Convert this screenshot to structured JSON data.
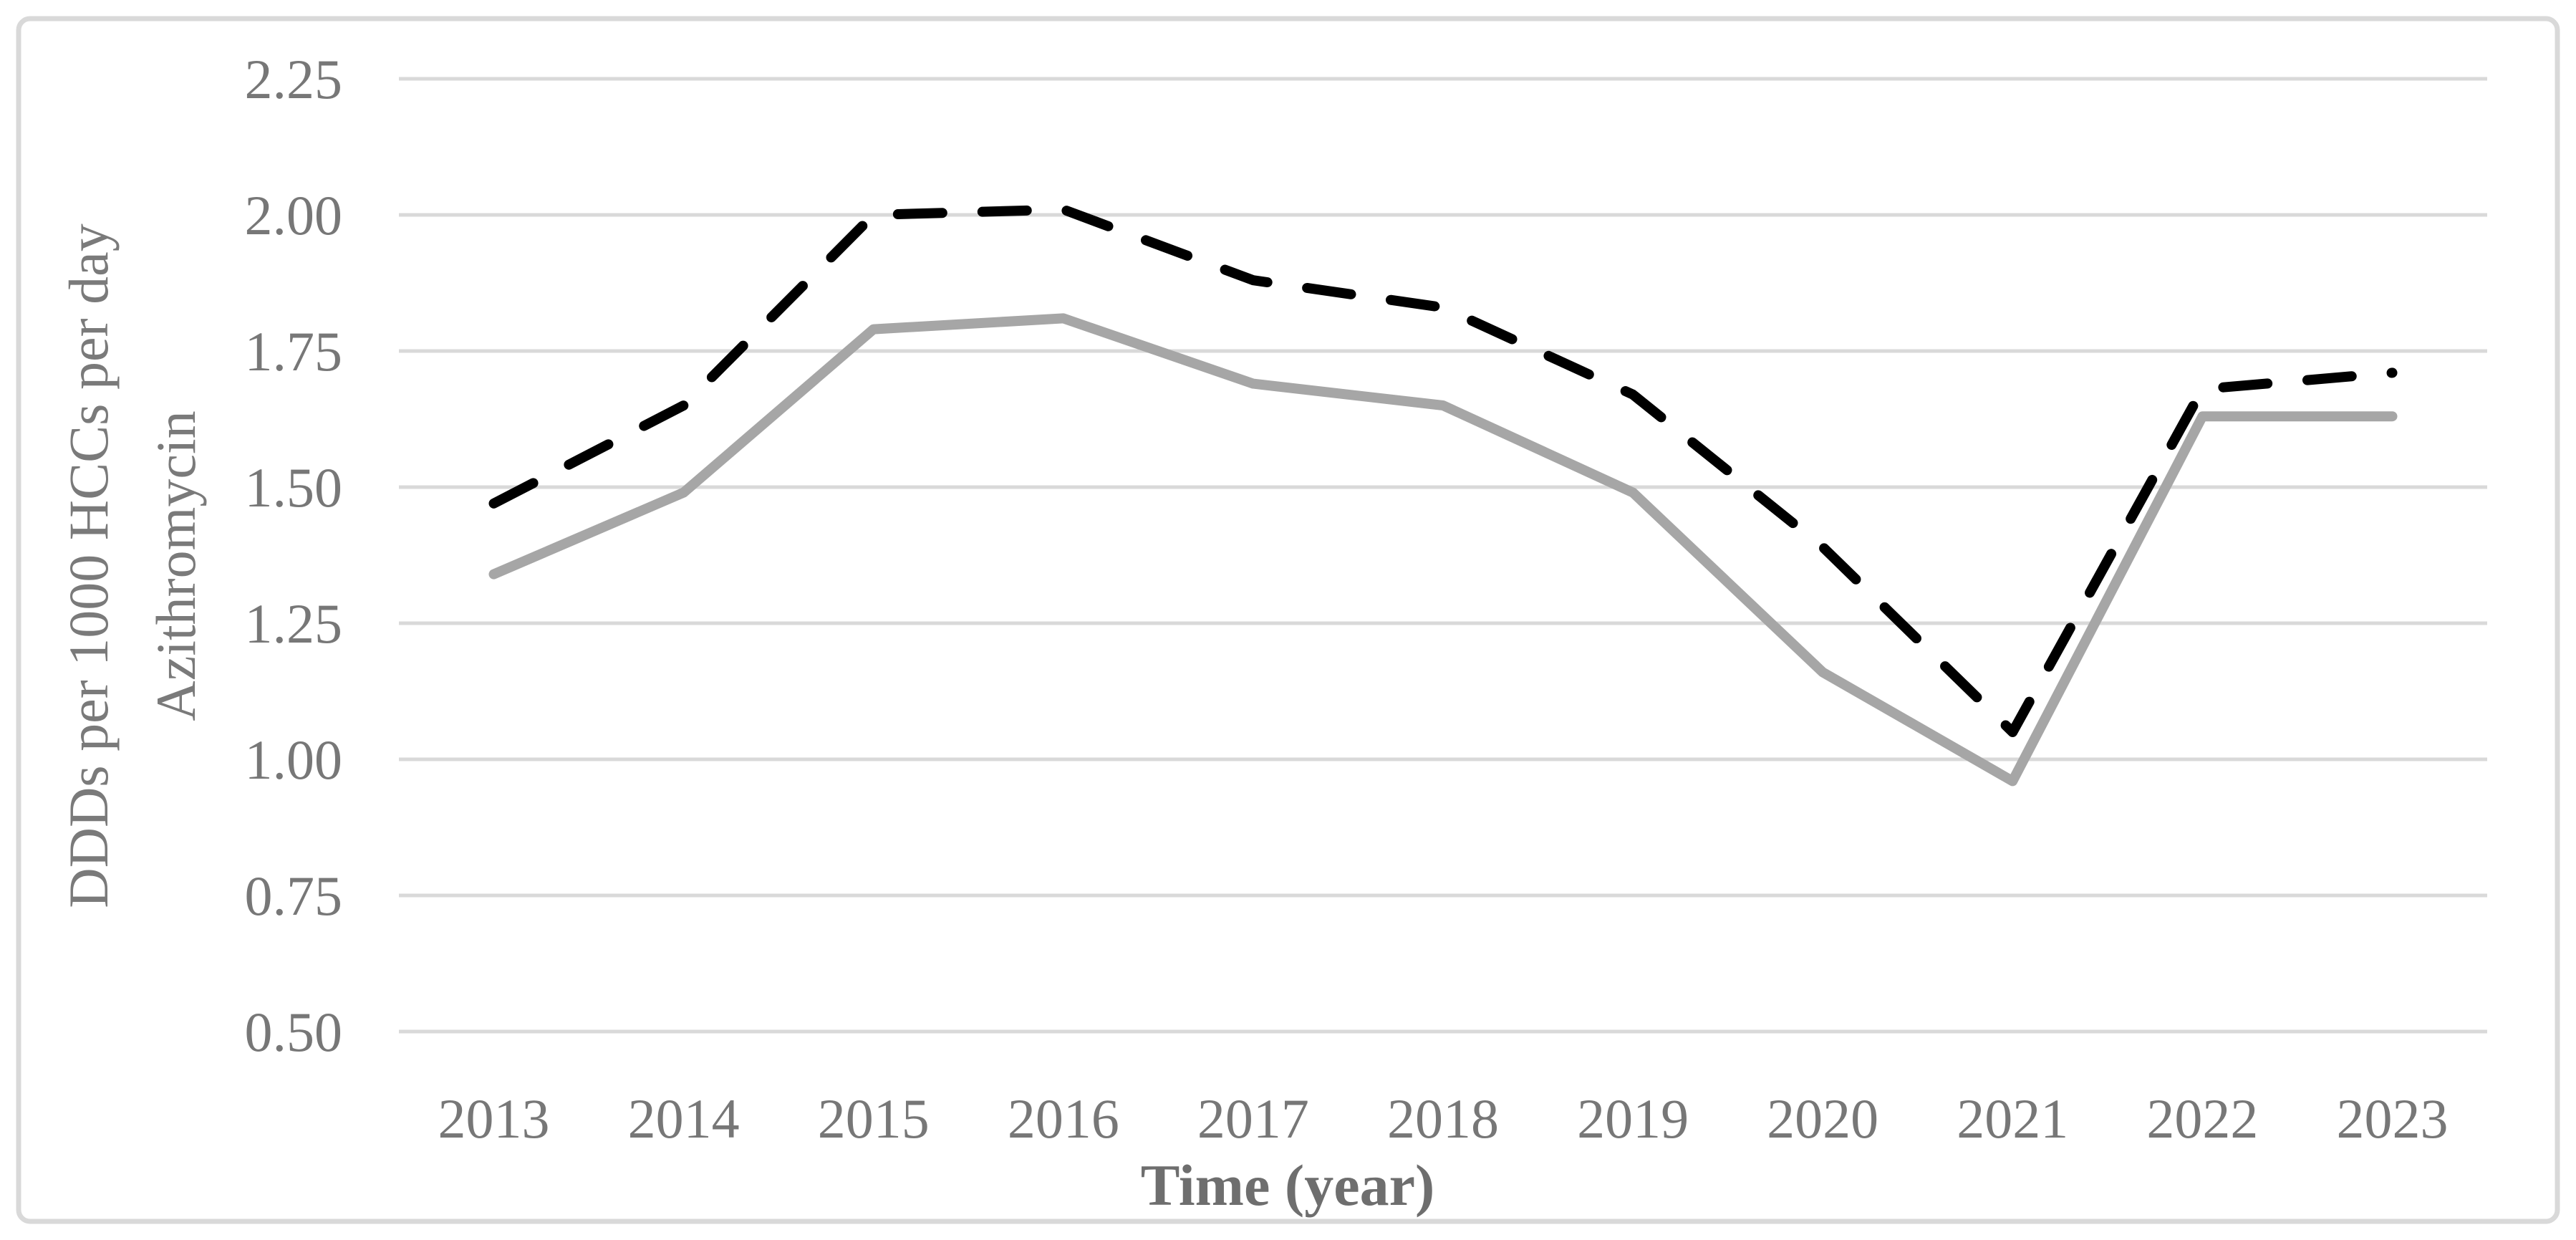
{
  "figure": {
    "background_color": "#ffffff",
    "border_color": "#d9d9d9",
    "legend": "none"
  },
  "chart_data": {
    "type": "line",
    "title": "",
    "xlabel": "Time (year)",
    "ylabel_lines": [
      "DDDs per 1000 HCCs per day",
      "Azithromycin"
    ],
    "categories": [
      "2013",
      "2014",
      "2015",
      "2016",
      "2017",
      "2018",
      "2019",
      "2020",
      "2021",
      "2022",
      "2023"
    ],
    "series": [
      {
        "id": "dashed-black",
        "line_style": "dashed",
        "color": "#000000",
        "values": [
          1.47,
          1.65,
          2.0,
          2.01,
          1.88,
          1.83,
          1.67,
          1.39,
          1.05,
          1.68,
          1.71
        ]
      },
      {
        "id": "solid-gray",
        "line_style": "solid",
        "color": "#a6a6a6",
        "values": [
          1.34,
          1.49,
          1.79,
          1.81,
          1.69,
          1.65,
          1.49,
          1.16,
          0.96,
          1.63,
          1.63
        ]
      }
    ],
    "ylim": [
      0.5,
      2.25
    ],
    "y_ticks": [
      2.25,
      2.0,
      1.75,
      1.5,
      1.25,
      1.0,
      0.75,
      0.5
    ],
    "y_tick_format": "2-decimals",
    "grid": "horizontal",
    "gridline_color": "#d9d9d9",
    "tick_label_color": "#777777",
    "legend_position": "none"
  }
}
